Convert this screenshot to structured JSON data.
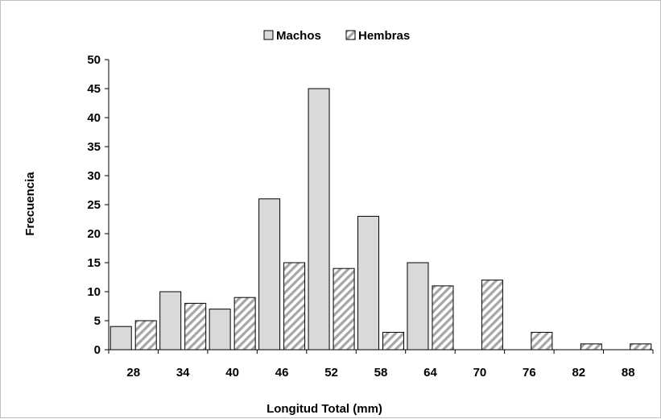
{
  "chart_data": {
    "type": "bar",
    "categories": [
      "28",
      "34",
      "40",
      "46",
      "52",
      "58",
      "64",
      "70",
      "76",
      "82",
      "88"
    ],
    "series": [
      {
        "name": "Machos",
        "values": [
          4,
          10,
          7,
          26,
          45,
          23,
          15,
          0,
          0,
          0,
          0
        ],
        "color": "#d9d9d9",
        "pattern": "solid"
      },
      {
        "name": "Hembras",
        "values": [
          5,
          8,
          9,
          15,
          14,
          3,
          11,
          12,
          3,
          1,
          1
        ],
        "color": "#bfbfbf",
        "pattern": "diagonal-hatch"
      }
    ],
    "xlabel": "Longitud Total (mm)",
    "ylabel": "Frecuencia",
    "ylim": [
      0,
      50
    ],
    "yticks": [
      "0",
      "5",
      "10",
      "15",
      "20",
      "25",
      "30",
      "35",
      "40",
      "45",
      "50"
    ],
    "grid": false,
    "legend_position": "top-center"
  }
}
